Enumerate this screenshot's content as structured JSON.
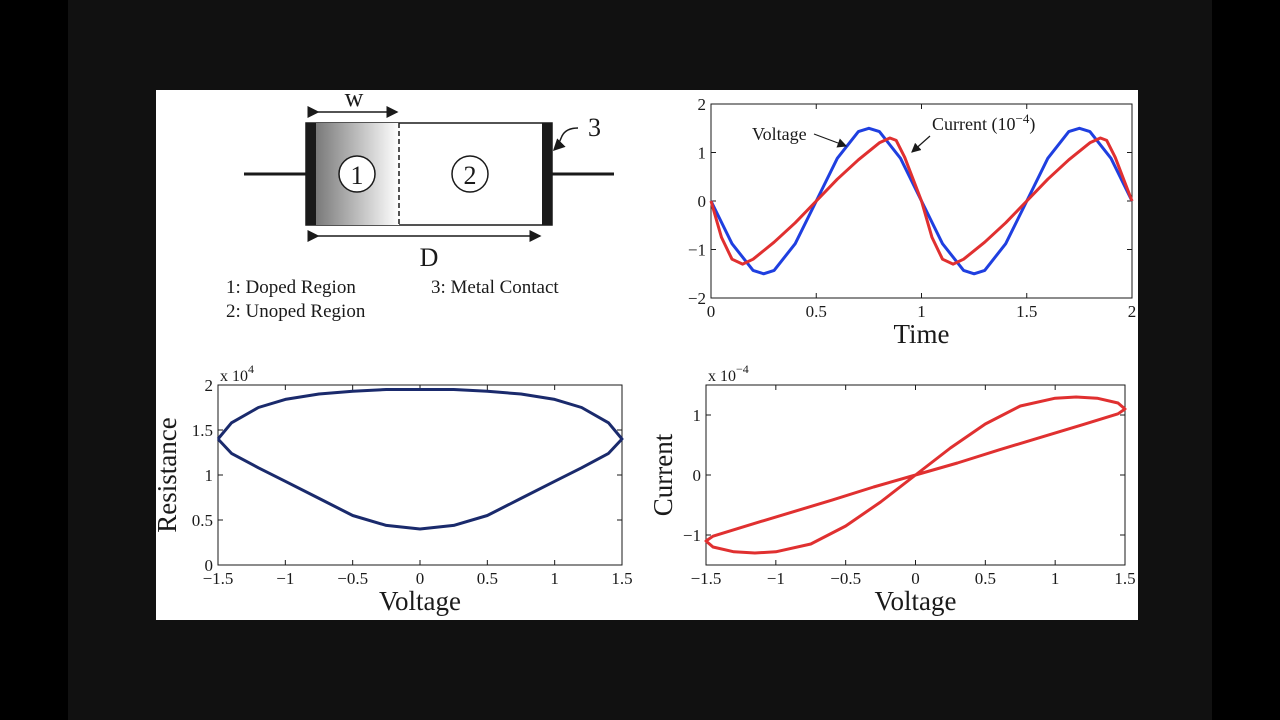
{
  "device_diagram": {
    "label_w": "w",
    "label_d": "D",
    "label_3": "3",
    "region_1": "1",
    "region_2": "2",
    "legend_1": "1: Doped Region",
    "legend_2": "2: Unoped Region",
    "legend_3": "3: Metal Contact"
  },
  "chart_data": [
    {
      "type": "line",
      "id": "time-plot",
      "xlabel": "Time",
      "xlim": [
        0,
        2
      ],
      "ylim": [
        -2,
        2
      ],
      "xticks": [
        "0",
        "0.5",
        "1",
        "1.5",
        "2"
      ],
      "yticks": [
        "2",
        "1",
        "0",
        "−1",
        "−2"
      ],
      "annotations": [
        "Voltage",
        "Current  (10",
        "−4",
        ")"
      ],
      "series": [
        {
          "name": "Voltage",
          "color": "#1f3fe0",
          "x": [
            0,
            0.1,
            0.2,
            0.25,
            0.3,
            0.4,
            0.5,
            0.6,
            0.7,
            0.75,
            0.8,
            0.9,
            1.0,
            1.1,
            1.2,
            1.25,
            1.3,
            1.4,
            1.5,
            1.6,
            1.7,
            1.75,
            1.8,
            1.9,
            2.0
          ],
          "y": [
            0,
            -0.88,
            -1.43,
            -1.5,
            -1.43,
            -0.88,
            0,
            0.88,
            1.43,
            1.5,
            1.43,
            0.88,
            0,
            -0.88,
            -1.43,
            -1.5,
            -1.43,
            -0.88,
            0,
            0.88,
            1.43,
            1.5,
            1.43,
            0.88,
            0
          ]
        },
        {
          "name": "Current",
          "color": "#e03030",
          "x": [
            0,
            0.05,
            0.1,
            0.15,
            0.2,
            0.3,
            0.4,
            0.5,
            0.6,
            0.7,
            0.8,
            0.85,
            0.88,
            0.92,
            0.96,
            1.0,
            1.05,
            1.1,
            1.15,
            1.2,
            1.3,
            1.4,
            1.5,
            1.6,
            1.7,
            1.8,
            1.85,
            1.88,
            1.92,
            1.96,
            2.0
          ],
          "y": [
            0,
            -0.75,
            -1.2,
            -1.3,
            -1.2,
            -0.85,
            -0.45,
            0,
            0.45,
            0.85,
            1.2,
            1.3,
            1.25,
            0.9,
            0.45,
            0,
            -0.75,
            -1.2,
            -1.3,
            -1.2,
            -0.85,
            -0.45,
            0,
            0.45,
            0.85,
            1.2,
            1.3,
            1.25,
            0.9,
            0.45,
            0
          ]
        }
      ]
    },
    {
      "type": "line",
      "id": "resistance-plot",
      "xlabel": "Voltage",
      "ylabel": "Resistance",
      "multiplier": "x 10",
      "multiplier_exp": "4",
      "xlim": [
        -1.5,
        1.5
      ],
      "ylim": [
        0,
        2
      ],
      "xticks": [
        "−1.5",
        "−1",
        "−0.5",
        "0",
        "0.5",
        "1",
        "1.5"
      ],
      "yticks": [
        "2",
        "1.5",
        "1",
        "0.5",
        "0"
      ],
      "series": [
        {
          "name": "",
          "color": "#1a2a6c",
          "x": [
            -1.5,
            -1.4,
            -1.2,
            -1.0,
            -0.75,
            -0.5,
            -0.25,
            0,
            0.25,
            0.5,
            0.75,
            1.0,
            1.2,
            1.4,
            1.5,
            1.4,
            1.2,
            1.0,
            0.75,
            0.5,
            0.25,
            0,
            -0.25,
            -0.5,
            -0.75,
            -1.0,
            -1.2,
            -1.4,
            -1.5
          ],
          "y": [
            1.4,
            1.58,
            1.75,
            1.84,
            1.9,
            1.93,
            1.95,
            1.95,
            1.95,
            1.93,
            1.9,
            1.84,
            1.75,
            1.58,
            1.4,
            1.24,
            1.08,
            0.93,
            0.74,
            0.55,
            0.44,
            0.4,
            0.44,
            0.55,
            0.74,
            0.93,
            1.08,
            1.24,
            1.4
          ]
        }
      ]
    },
    {
      "type": "line",
      "id": "current-voltage-plot",
      "xlabel": "Voltage",
      "ylabel": "Current",
      "multiplier": "x 10",
      "multiplier_exp": "−4",
      "xlim": [
        -1.5,
        1.5
      ],
      "ylim": [
        -1.5,
        1.5
      ],
      "xticks": [
        "−1.5",
        "−1",
        "−0.5",
        "0",
        "0.5",
        "1",
        "1.5"
      ],
      "yticks": [
        "1",
        "0",
        "−1"
      ],
      "series": [
        {
          "name": "",
          "color": "#e03030",
          "x": [
            0,
            0.25,
            0.5,
            0.75,
            1.0,
            1.15,
            1.3,
            1.45,
            1.5,
            1.45,
            1.2,
            0.9,
            0.6,
            0.3,
            0,
            -0.25,
            -0.5,
            -0.75,
            -1.0,
            -1.15,
            -1.3,
            -1.45,
            -1.5,
            -1.45,
            -1.2,
            -0.9,
            -0.6,
            -0.3,
            0
          ],
          "y": [
            0,
            0.45,
            0.85,
            1.15,
            1.28,
            1.3,
            1.28,
            1.2,
            1.1,
            1.02,
            0.84,
            0.63,
            0.42,
            0.2,
            0,
            -0.45,
            -0.85,
            -1.15,
            -1.28,
            -1.3,
            -1.28,
            -1.2,
            -1.1,
            -1.02,
            -0.84,
            -0.63,
            -0.42,
            -0.2,
            0
          ]
        }
      ]
    }
  ]
}
